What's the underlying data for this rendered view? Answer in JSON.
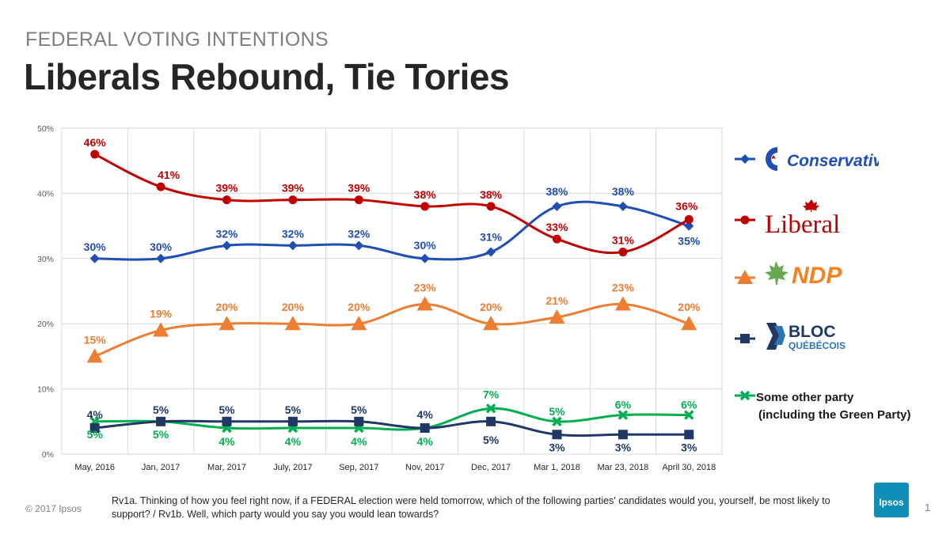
{
  "header": {
    "kicker": "FEDERAL VOTING INTENTIONS",
    "title": "Liberals Rebound, Tie Tories"
  },
  "chart_data": {
    "type": "line",
    "categories": [
      "May, 2016",
      "Jan, 2017",
      "Mar, 2017",
      "July, 2017",
      "Sep, 2017",
      "Nov, 2017",
      "Dec, 2017",
      "Mar 1, 2018",
      "Mar 23, 2018",
      "April 30, 2018"
    ],
    "ylim": [
      0,
      50
    ],
    "yticks": [
      "0%",
      "10%",
      "20%",
      "30%",
      "40%",
      "50%"
    ],
    "grid": true,
    "legend_placement": "right",
    "series": [
      {
        "key": "conservative",
        "name": "Conservative",
        "color": "#1f4eb4",
        "marker": "diamond",
        "values": [
          30,
          30,
          32,
          32,
          32,
          30,
          31,
          38,
          38,
          35
        ],
        "labels": [
          "30%",
          "30%",
          "32%",
          "32%",
          "32%",
          "30%",
          "31%",
          "38%",
          "38%",
          "35%"
        ]
      },
      {
        "key": "liberal",
        "name": "Liberal",
        "color": "#c00000",
        "marker": "circle",
        "values": [
          46,
          41,
          39,
          39,
          39,
          38,
          38,
          33,
          31,
          36
        ],
        "labels": [
          "46%",
          "41%",
          "39%",
          "39%",
          "39%",
          "38%",
          "38%",
          "33%",
          "31%",
          "36%"
        ]
      },
      {
        "key": "ndp",
        "name": "NDP",
        "color": "#ed7d31",
        "marker": "triangle",
        "values": [
          15,
          19,
          20,
          20,
          20,
          23,
          20,
          21,
          23,
          20
        ],
        "labels": [
          "15%",
          "19%",
          "20%",
          "20%",
          "20%",
          "23%",
          "20%",
          "21%",
          "23%",
          "20%"
        ]
      },
      {
        "key": "bloc",
        "name": "BLOC QUÉBÉCOIS",
        "color": "#1f3864",
        "marker": "square",
        "values": [
          4,
          5,
          5,
          5,
          5,
          4,
          5,
          3,
          3,
          3
        ],
        "labels": [
          "4%",
          "5%",
          "5%",
          "5%",
          "5%",
          "4%",
          "5%",
          "3%",
          "3%",
          "3%"
        ]
      },
      {
        "key": "other",
        "name": "Some other party (including the Green Party)",
        "color": "#00b050",
        "marker": "x",
        "values": [
          5,
          5,
          4,
          4,
          4,
          4,
          7,
          5,
          6,
          6
        ],
        "labels": [
          "5%",
          "5%",
          "4%",
          "4%",
          "4%",
          "4%",
          "7%",
          "5%",
          "6%",
          "6%"
        ]
      }
    ]
  },
  "legend": {
    "conservative": "Conservative",
    "liberal": "Liberal",
    "ndp": "NDP",
    "bloc_line1": "BLOC",
    "bloc_line2": "QUÉBÉCOIS",
    "other_line1": "Some other party",
    "other_line2": "(including the Green Party)"
  },
  "footer": {
    "copyright": "© 2017 Ipsos",
    "question": "Rv1a. Thinking of how you feel right now, if a FEDERAL election were held tomorrow, which of the following parties' candidates would you, yourself, be most likely to support? / Rv1b. Well, which party would you say you would lean towards?",
    "brand": "Ipsos",
    "page": "1"
  },
  "colors": {
    "conservative": "#1f4eb4",
    "liberal": "#c00000",
    "ndp": "#ed7d31",
    "bloc": "#1f3864",
    "other": "#00b050",
    "brand": "#0f8fb6"
  }
}
